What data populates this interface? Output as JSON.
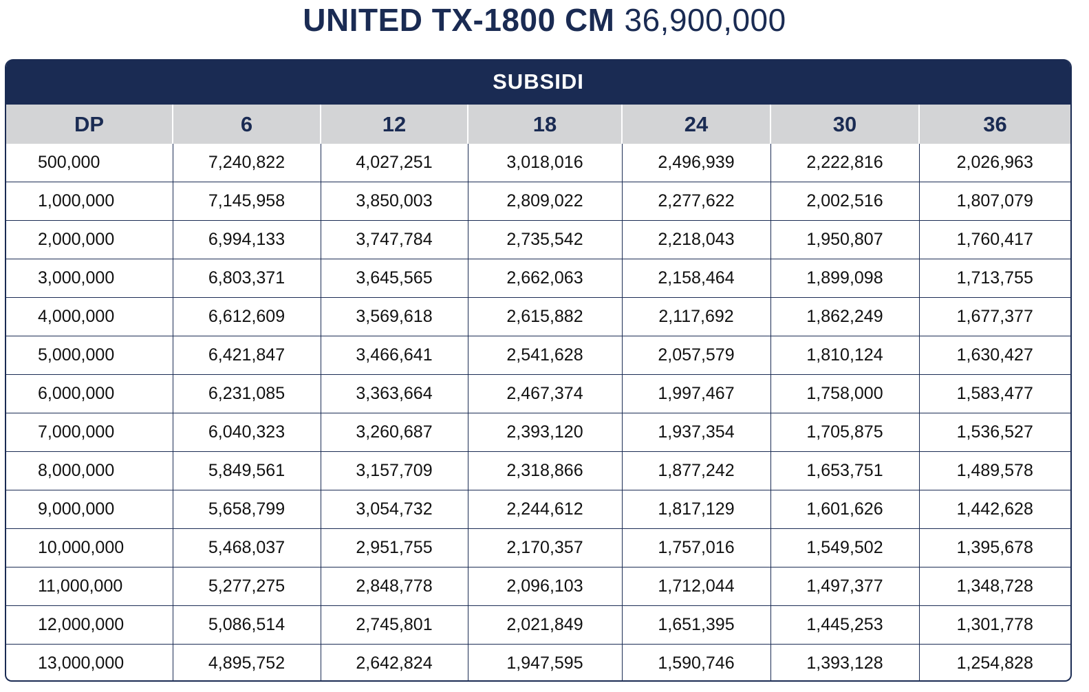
{
  "title": {
    "model": "UNITED TX-1800 CM",
    "price": "36,900,000"
  },
  "banner": "SUBSIDI",
  "columns": [
    "DP",
    "6",
    "12",
    "18",
    "24",
    "30",
    "36"
  ],
  "rows": [
    [
      "500,000",
      "7,240,822",
      "4,027,251",
      "3,018,016",
      "2,496,939",
      "2,222,816",
      "2,026,963"
    ],
    [
      "1,000,000",
      "7,145,958",
      "3,850,003",
      "2,809,022",
      "2,277,622",
      "2,002,516",
      "1,807,079"
    ],
    [
      "2,000,000",
      "6,994,133",
      "3,747,784",
      "2,735,542",
      "2,218,043",
      "1,950,807",
      "1,760,417"
    ],
    [
      "3,000,000",
      "6,803,371",
      "3,645,565",
      "2,662,063",
      "2,158,464",
      "1,899,098",
      "1,713,755"
    ],
    [
      "4,000,000",
      "6,612,609",
      "3,569,618",
      "2,615,882",
      "2,117,692",
      "1,862,249",
      "1,677,377"
    ],
    [
      "5,000,000",
      "6,421,847",
      "3,466,641",
      "2,541,628",
      "2,057,579",
      "1,810,124",
      "1,630,427"
    ],
    [
      "6,000,000",
      "6,231,085",
      "3,363,664",
      "2,467,374",
      "1,997,467",
      "1,758,000",
      "1,583,477"
    ],
    [
      "7,000,000",
      "6,040,323",
      "3,260,687",
      "2,393,120",
      "1,937,354",
      "1,705,875",
      "1,536,527"
    ],
    [
      "8,000,000",
      "5,849,561",
      "3,157,709",
      "2,318,866",
      "1,877,242",
      "1,653,751",
      "1,489,578"
    ],
    [
      "9,000,000",
      "5,658,799",
      "3,054,732",
      "2,244,612",
      "1,817,129",
      "1,601,626",
      "1,442,628"
    ],
    [
      "10,000,000",
      "5,468,037",
      "2,951,755",
      "2,170,357",
      "1,757,016",
      "1,549,502",
      "1,395,678"
    ],
    [
      "11,000,000",
      "5,277,275",
      "2,848,778",
      "2,096,103",
      "1,712,044",
      "1,497,377",
      "1,348,728"
    ],
    [
      "12,000,000",
      "5,086,514",
      "2,745,801",
      "2,021,849",
      "1,651,395",
      "1,445,253",
      "1,301,778"
    ],
    [
      "13,000,000",
      "4,895,752",
      "2,642,824",
      "1,947,595",
      "1,590,746",
      "1,393,128",
      "1,254,828"
    ]
  ]
}
